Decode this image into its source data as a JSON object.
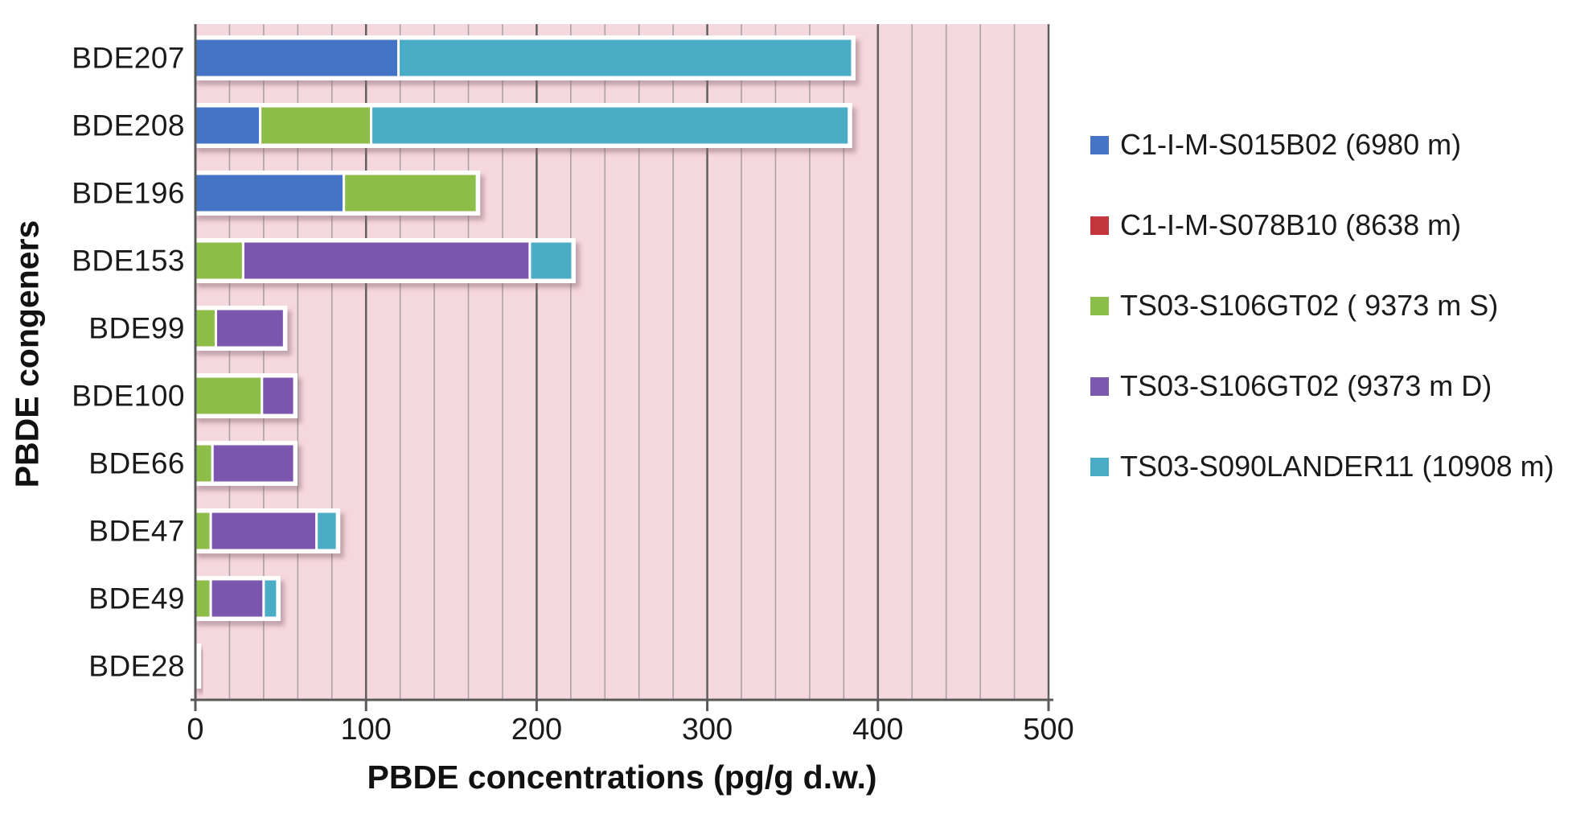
{
  "chart_data": {
    "type": "bar",
    "orientation": "horizontal",
    "stacked": true,
    "title": "",
    "xlabel": "PBDE concentrations (pg/g d.w.)",
    "ylabel": "PBDE congeners",
    "categories": [
      "BDE207",
      "BDE208",
      "BDE196",
      "BDE153",
      "BDE99",
      "BDE100",
      "BDE66",
      "BDE47",
      "BDE49",
      "BDE28"
    ],
    "series": [
      {
        "name": "C1-I-M-S015B02 (6980 m)",
        "color": "#4573C5",
        "values": [
          119,
          38,
          87,
          0,
          0,
          0,
          0,
          0,
          0,
          0
        ]
      },
      {
        "name": "C1-I-M-S078B10 (8638 m)",
        "color": "#C2353D",
        "values": [
          0,
          0,
          0,
          0,
          0,
          0,
          0,
          0,
          0,
          0
        ]
      },
      {
        "name": "TS03-S106GT02 ( 9373 m S)",
        "color": "#8CBE4A",
        "values": [
          0,
          65,
          78,
          28,
          12,
          39,
          10,
          9,
          9,
          0.5
        ]
      },
      {
        "name": "TS03-S106GT02 (9373 m D)",
        "color": "#7B57AE",
        "values": [
          0,
          0,
          0,
          168,
          40,
          19,
          48,
          62,
          31,
          0.5
        ]
      },
      {
        "name": "TS03-S090LANDER11 (10908 m)",
        "color": "#4BACC6",
        "values": [
          266,
          280,
          0,
          25,
          0,
          0,
          0,
          12,
          8,
          0.5
        ]
      }
    ],
    "totals": [
      385,
      383,
      165,
      221,
      52,
      58,
      58,
      83,
      48,
      1.5
    ],
    "xlim": [
      0,
      500
    ],
    "xticks": [
      0,
      100,
      200,
      300,
      400,
      500
    ],
    "grid": {
      "show": true,
      "minor_step": 20,
      "major_step": 100
    },
    "legend_position": "right"
  },
  "styles": {
    "background": "#FFFFFF",
    "plot_bg": "#F5D8DD",
    "grid_minor": "#A9A2A6",
    "grid_major": "#606060",
    "axis_line": "#595959",
    "text_color": "#1A1A1A",
    "bar_border": "#FFFFFF",
    "bar_shadow": "rgba(136,96,110,0.45)"
  }
}
